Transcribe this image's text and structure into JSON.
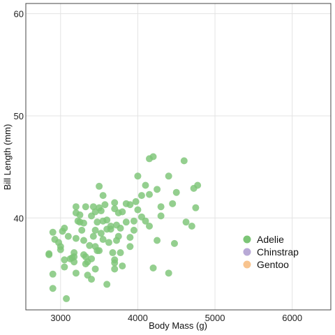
{
  "chart_data": {
    "type": "scatter",
    "title": "",
    "xlabel": "Body Mass (g)",
    "ylabel": "Bill Length (mm)",
    "xlim": [
      2550,
      6500
    ],
    "ylim": [
      31,
      61
    ],
    "xticks": [
      3000,
      4000,
      5000,
      6000
    ],
    "yticks": [
      40,
      50,
      60
    ],
    "grid": true,
    "legend_position": "right",
    "series": [
      {
        "name": "Adelie",
        "color": "#7cc576",
        "points": [
          [
            2850,
            36.4
          ],
          [
            2850,
            36.5
          ],
          [
            2900,
            38.6
          ],
          [
            2900,
            34.5
          ],
          [
            2900,
            33.1
          ],
          [
            2925,
            37.9
          ],
          [
            2975,
            37.6
          ],
          [
            3000,
            37.2
          ],
          [
            3000,
            36.9
          ],
          [
            3025,
            38.7
          ],
          [
            3050,
            39.0
          ],
          [
            3050,
            35.9
          ],
          [
            3050,
            35.2
          ],
          [
            3075,
            32.1
          ],
          [
            3100,
            38.2
          ],
          [
            3125,
            36.0
          ],
          [
            3150,
            36.1
          ],
          [
            3175,
            36.6
          ],
          [
            3175,
            36.2
          ],
          [
            3175,
            35.7
          ],
          [
            3200,
            38.0
          ],
          [
            3200,
            41.1
          ],
          [
            3200,
            40.5
          ],
          [
            3200,
            34.6
          ],
          [
            3225,
            39.7
          ],
          [
            3250,
            40.3
          ],
          [
            3250,
            39.6
          ],
          [
            3275,
            38.8
          ],
          [
            3300,
            39.5
          ],
          [
            3300,
            37.8
          ],
          [
            3300,
            36.4
          ],
          [
            3325,
            36.2
          ],
          [
            3325,
            41.1
          ],
          [
            3325,
            35.5
          ],
          [
            3350,
            35.7
          ],
          [
            3350,
            34.4
          ],
          [
            3375,
            37.3
          ],
          [
            3400,
            40.2
          ],
          [
            3400,
            36.0
          ],
          [
            3400,
            34.0
          ],
          [
            3425,
            41.1
          ],
          [
            3425,
            38.2
          ],
          [
            3450,
            40.6
          ],
          [
            3450,
            38.8
          ],
          [
            3450,
            37.2
          ],
          [
            3450,
            35.0
          ],
          [
            3475,
            39.6
          ],
          [
            3475,
            36.8
          ],
          [
            3500,
            43.1
          ],
          [
            3500,
            41.0
          ],
          [
            3500,
            36.8
          ],
          [
            3525,
            40.7
          ],
          [
            3525,
            38.5
          ],
          [
            3550,
            42.2
          ],
          [
            3550,
            39.7
          ],
          [
            3550,
            37.9
          ],
          [
            3575,
            41.3
          ],
          [
            3600,
            39.8
          ],
          [
            3600,
            38.9
          ],
          [
            3600,
            33.5
          ],
          [
            3625,
            37.6
          ],
          [
            3650,
            39.2
          ],
          [
            3650,
            38.9
          ],
          [
            3675,
            36.6
          ],
          [
            3700,
            41.5
          ],
          [
            3700,
            40.9
          ],
          [
            3700,
            35.9
          ],
          [
            3700,
            35.6
          ],
          [
            3700,
            35.0
          ],
          [
            3725,
            39.3
          ],
          [
            3725,
            37.8
          ],
          [
            3750,
            40.5
          ],
          [
            3750,
            38.2
          ],
          [
            3775,
            39.0
          ],
          [
            3775,
            36.6
          ],
          [
            3800,
            40.6
          ],
          [
            3800,
            35.3
          ],
          [
            3850,
            41.4
          ],
          [
            3850,
            39.6
          ],
          [
            3900,
            41.3
          ],
          [
            3900,
            38.1
          ],
          [
            3900,
            37.2
          ],
          [
            3950,
            39.7
          ],
          [
            3950,
            38.8
          ],
          [
            3975,
            41.6
          ],
          [
            4000,
            44.1
          ],
          [
            4000,
            40.8
          ],
          [
            4050,
            42.2
          ],
          [
            4050,
            40.1
          ],
          [
            4100,
            43.2
          ],
          [
            4100,
            39.7
          ],
          [
            4150,
            45.8
          ],
          [
            4150,
            42.3
          ],
          [
            4150,
            39.2
          ],
          [
            4200,
            46.0
          ],
          [
            4200,
            35.1
          ],
          [
            4250,
            42.8
          ],
          [
            4250,
            37.8
          ],
          [
            4300,
            41.1
          ],
          [
            4300,
            40.2
          ],
          [
            4400,
            44.1
          ],
          [
            4400,
            34.6
          ],
          [
            4450,
            41.4
          ],
          [
            4475,
            37.5
          ],
          [
            4500,
            42.5
          ],
          [
            4600,
            45.6
          ],
          [
            4625,
            39.6
          ],
          [
            4700,
            39.2
          ],
          [
            4725,
            42.9
          ],
          [
            4750,
            41.0
          ],
          [
            4775,
            43.2
          ]
        ]
      },
      {
        "name": "Chinstrap",
        "color": "#b8a9d6",
        "points": []
      },
      {
        "name": "Gentoo",
        "color": "#f8c48f",
        "points": []
      }
    ]
  }
}
